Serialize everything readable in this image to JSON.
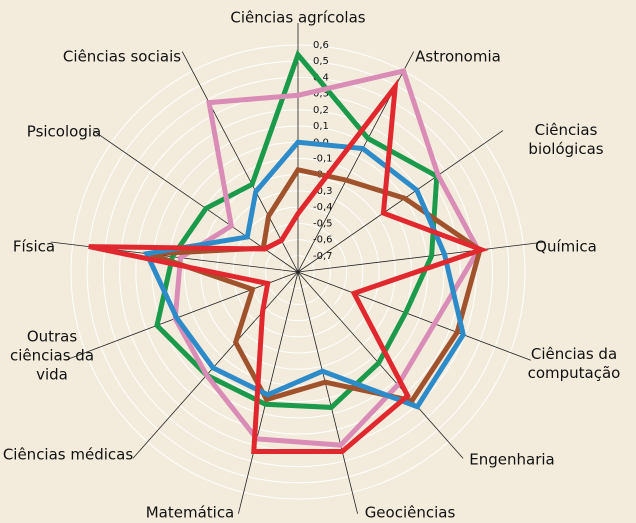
{
  "chart_data": {
    "type": "radar",
    "categories": [
      "Ciências agrícolas",
      "Astronomia",
      "Ciências biológicas",
      "Química",
      "Ciências da computação",
      "Engenharia",
      "Geociências",
      "Matemática",
      "Ciências médicas",
      "Outras ciências da vida",
      "Física",
      "Psicologia",
      "Ciências sociais"
    ],
    "ylim": [
      -0.8,
      0.6
    ],
    "yticks": [
      {
        "value": -0.7,
        "label": "-0,7"
      },
      {
        "value": -0.6,
        "label": "-0,6"
      },
      {
        "value": -0.5,
        "label": "-0,5"
      },
      {
        "value": -0.4,
        "label": "-0,4"
      },
      {
        "value": -0.3,
        "label": "-0,3"
      },
      {
        "value": -0.2,
        "label": "-0,2"
      },
      {
        "value": -0.1,
        "label": "-0,1"
      },
      {
        "value": 0,
        "label": "0,0"
      },
      {
        "value": 0.1,
        "label": "0,1"
      },
      {
        "value": 0.2,
        "label": "0,2"
      },
      {
        "value": 0.3,
        "label": "0,3"
      },
      {
        "value": 0.4,
        "label": "0,4"
      },
      {
        "value": 0.5,
        "label": "0,5"
      },
      {
        "value": 0.6,
        "label": "0,6"
      }
    ],
    "series": [
      {
        "color": "#1a9a4a",
        "values": [
          0.54,
          0.13,
          0.24,
          0.03,
          -0.09,
          -0.05,
          0.06,
          0.04,
          0.05,
          0.13,
          -0.02,
          -0.11,
          -0.19
        ]
      },
      {
        "color": "#d98cb6",
        "values": [
          0.29,
          0.6,
          0.25,
          0.32,
          0.1,
          0.13,
          0.3,
          0.26,
          0.05,
          0.01,
          -0.07,
          -0.3,
          0.38
        ]
      },
      {
        "color": "#a0522d",
        "values": [
          -0.17,
          -0.16,
          0.0,
          0.33,
          0.25,
          0.26,
          -0.1,
          0.01,
          -0.22,
          -0.5,
          0.12,
          -0.54,
          -0.41
        ]
      },
      {
        "color": "#2e8bc9",
        "values": [
          0.0,
          0.06,
          0.09,
          0.11,
          0.29,
          0.31,
          -0.17,
          -0.02,
          -0.01,
          0.0,
          0.14,
          -0.42,
          -0.24
        ]
      },
      {
        "color": "#e0282e",
        "values": [
          -0.44,
          0.49,
          -0.16,
          0.34,
          -0.43,
          0.22,
          0.34,
          0.34,
          -0.47,
          -0.6,
          0.5,
          -0.55,
          -0.58
        ]
      }
    ]
  }
}
